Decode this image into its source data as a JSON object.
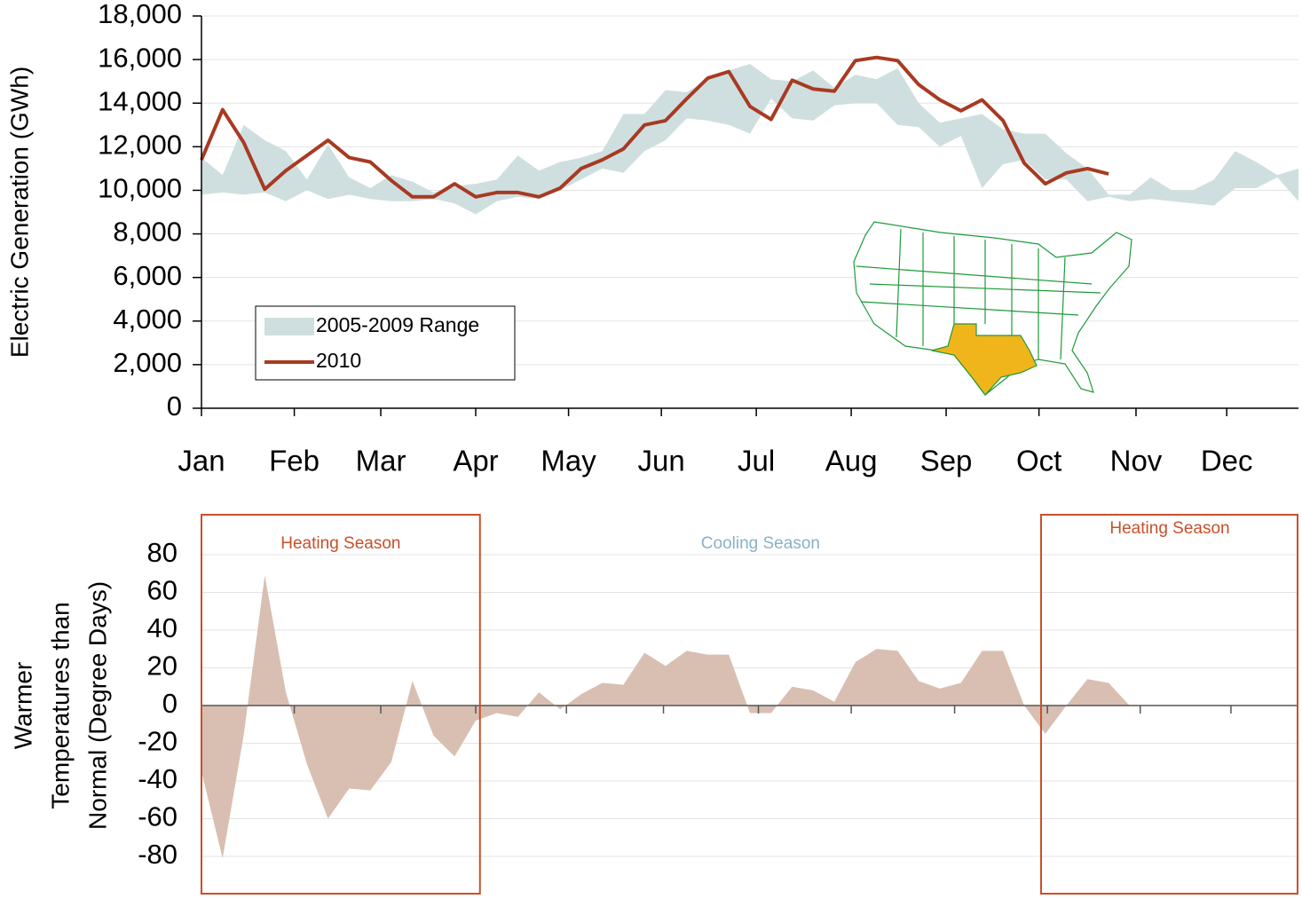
{
  "chart_data": [
    {
      "type": "band-line",
      "ylabel": "Electric Generation (GWh)",
      "x": [
        1,
        2,
        3,
        4,
        5,
        6,
        7,
        8,
        9,
        10,
        11,
        12,
        13,
        14,
        15,
        16,
        17,
        18,
        19,
        20,
        21,
        22,
        23,
        24,
        25,
        26,
        27,
        28,
        29,
        30,
        31,
        32,
        33,
        34,
        35,
        36,
        37,
        38,
        39,
        40,
        41,
        42,
        43,
        44,
        45,
        46,
        47,
        48,
        49,
        50,
        51,
        52,
        53
      ],
      "xlim": [
        1,
        53
      ],
      "xticks": [
        {
          "value": 1,
          "label": "Jan"
        },
        {
          "value": 5.4,
          "label": "Feb"
        },
        {
          "value": 9.5,
          "label": "Mar"
        },
        {
          "value": 14,
          "label": "Apr"
        },
        {
          "value": 18.4,
          "label": "May"
        },
        {
          "value": 22.8,
          "label": "Jun"
        },
        {
          "value": 27.3,
          "label": "Jul"
        },
        {
          "value": 31.8,
          "label": "Aug"
        },
        {
          "value": 36.3,
          "label": "Sep"
        },
        {
          "value": 40.7,
          "label": "Oct"
        },
        {
          "value": 45.3,
          "label": "Nov"
        },
        {
          "value": 49.6,
          "label": "Dec"
        }
      ],
      "ylim": [
        0,
        18000
      ],
      "yticks": [
        0,
        {
          "value": 2000,
          "label": "2,000"
        },
        {
          "value": 4000,
          "label": "4,000"
        },
        {
          "value": 6000,
          "label": "6,000"
        },
        {
          "value": 8000,
          "label": "8,000"
        },
        {
          "value": 10000,
          "label": "10,000"
        },
        {
          "value": 12000,
          "label": "12,000"
        },
        {
          "value": 14000,
          "label": "14,000"
        },
        {
          "value": 16000,
          "label": "16,000"
        },
        {
          "value": 18000,
          "label": "18,000"
        }
      ],
      "grid": true,
      "legend": "lower-left",
      "series": [
        {
          "name": "2005-2009 Range",
          "color": "#cfdfe0",
          "type": "band",
          "low": [
            9800,
            9900,
            9800,
            9900,
            9500,
            10000,
            9600,
            9800,
            9600,
            9500,
            9500,
            9600,
            9400,
            8900,
            9500,
            9700,
            9600,
            10000,
            10500,
            11000,
            10800,
            11800,
            12300,
            13300,
            13200,
            13000,
            12600,
            14200,
            13300,
            13200,
            13900,
            14000,
            14000,
            13000,
            12900,
            12000,
            12500,
            10100,
            11200,
            11400,
            10500,
            10500,
            9500,
            9700,
            9500,
            9600,
            9500,
            9400,
            9300,
            10100,
            10100,
            10600,
            9500
          ],
          "high": [
            11500,
            10700,
            13000,
            12300,
            11800,
            10500,
            12100,
            10600,
            10100,
            10700,
            10400,
            9900,
            10200,
            10300,
            10500,
            11600,
            10900,
            11300,
            11500,
            11800,
            13500,
            13500,
            14600,
            14500,
            15100,
            15500,
            15800,
            15100,
            15000,
            15500,
            14700,
            15300,
            15100,
            15600,
            14000,
            13100,
            13300,
            13500,
            12800,
            12600,
            12600,
            11700,
            11000,
            9800,
            9800,
            10600,
            10000,
            10000,
            10500,
            11800,
            11300,
            10700,
            11000
          ]
        },
        {
          "name": "2010",
          "color": "#a83a22",
          "type": "line",
          "values": [
            11400,
            13700,
            12200,
            10050,
            10900,
            11600,
            12300,
            11500,
            11300,
            10450,
            9700,
            9700,
            10300,
            9700,
            9900,
            9900,
            9700,
            10100,
            11000,
            11400,
            11900,
            13000,
            13200,
            14200,
            15150,
            15450,
            13850,
            13250,
            15050,
            14650,
            14550,
            15950,
            16100,
            15950,
            14850,
            14150,
            13650,
            14150,
            13200,
            11250,
            10300,
            10800,
            11000,
            10750,
            null,
            null,
            null,
            null,
            null,
            null,
            null,
            null,
            null
          ]
        }
      ]
    },
    {
      "type": "area",
      "ylabel": [
        "Warmer",
        "Temperatures than",
        "Normal (Degree Days)"
      ],
      "x": [
        1,
        2,
        3,
        4,
        5,
        6,
        7,
        8,
        9,
        10,
        11,
        12,
        13,
        14,
        15,
        16,
        17,
        18,
        19,
        20,
        21,
        22,
        23,
        24,
        25,
        26,
        27,
        28,
        29,
        30,
        31,
        32,
        33,
        34,
        35,
        36,
        37,
        38,
        39,
        40,
        41,
        42,
        43,
        44,
        45
      ],
      "xlim": [
        1,
        53
      ],
      "xticks": [
        5.4,
        9.5,
        14,
        18.3,
        22.9,
        27.4,
        31.8,
        36.7,
        41.1,
        45.5,
        49.8
      ],
      "ylim": [
        -100,
        100
      ],
      "yticks": [
        -80,
        -60,
        -40,
        -20,
        0,
        20,
        40,
        60,
        80
      ],
      "grid": true,
      "color": "#d8bfb2",
      "values": [
        -35,
        -81,
        -16,
        69,
        7,
        -31,
        -60,
        -44,
        -45,
        -30,
        13,
        -16,
        -27,
        -8,
        -4,
        -6,
        7,
        -2,
        6,
        12,
        11,
        28,
        21,
        29,
        27,
        27,
        -4,
        -4,
        10,
        8,
        2,
        23,
        30,
        29,
        13,
        9,
        12,
        29,
        29,
        0,
        -15,
        0,
        14,
        12,
        0
      ],
      "annotations": [
        {
          "text": "Heating Season",
          "xrange": [
            1,
            14.2
          ],
          "boxed": true,
          "color": "#c8502a"
        },
        {
          "text": "Cooling Season",
          "xrange": [
            14.2,
            40.8
          ],
          "boxed": false,
          "color": "#8ab1c8"
        },
        {
          "text": "Heating Season",
          "xrange": [
            40.8,
            53
          ],
          "boxed": true,
          "color": "#c8502a"
        }
      ]
    }
  ]
}
